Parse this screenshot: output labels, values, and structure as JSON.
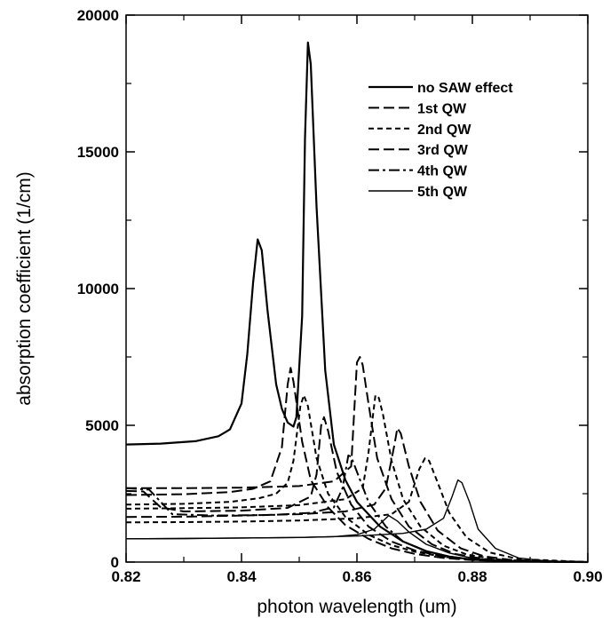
{
  "chart_data": {
    "type": "line",
    "title": "",
    "xlabel": "photon wavelength (um)",
    "ylabel": "absorption coefficient (1/cm)",
    "xlim": [
      0.82,
      0.9
    ],
    "ylim": [
      0,
      20000
    ],
    "xticks": [
      "0.82",
      "0.84",
      "0.86",
      "0.88",
      "0.90"
    ],
    "yticks": [
      "0",
      "5000",
      "10000",
      "15000",
      "20000"
    ],
    "grid": false,
    "legend_position": "top-right",
    "series": [
      {
        "name": "no SAW effect",
        "style": "solid",
        "color": "#000000",
        "points": [
          [
            0.82,
            4300
          ],
          [
            0.826,
            4330
          ],
          [
            0.832,
            4420
          ],
          [
            0.836,
            4600
          ],
          [
            0.838,
            4850
          ],
          [
            0.84,
            5800
          ],
          [
            0.841,
            7600
          ],
          [
            0.842,
            10200
          ],
          [
            0.8428,
            11800
          ],
          [
            0.8435,
            11400
          ],
          [
            0.8445,
            9200
          ],
          [
            0.846,
            6500
          ],
          [
            0.847,
            5600
          ],
          [
            0.848,
            5100
          ],
          [
            0.849,
            4950
          ],
          [
            0.8495,
            5300
          ],
          [
            0.8505,
            9000
          ],
          [
            0.851,
            15500
          ],
          [
            0.8515,
            19000
          ],
          [
            0.852,
            18200
          ],
          [
            0.853,
            13000
          ],
          [
            0.8545,
            7000
          ],
          [
            0.856,
            4300
          ],
          [
            0.858,
            3000
          ],
          [
            0.86,
            2200
          ],
          [
            0.864,
            1300
          ],
          [
            0.868,
            750
          ],
          [
            0.872,
            400
          ],
          [
            0.876,
            200
          ],
          [
            0.88,
            90
          ],
          [
            0.886,
            30
          ],
          [
            0.9,
            0
          ]
        ]
      },
      {
        "name": "1st QW",
        "style": "long-dash",
        "color": "#000000",
        "points": [
          [
            0.82,
            2450
          ],
          [
            0.83,
            2480
          ],
          [
            0.838,
            2560
          ],
          [
            0.842,
            2680
          ],
          [
            0.845,
            2950
          ],
          [
            0.847,
            4200
          ],
          [
            0.848,
            6500
          ],
          [
            0.8485,
            7100
          ],
          [
            0.849,
            6600
          ],
          [
            0.8505,
            4400
          ],
          [
            0.852,
            3000
          ],
          [
            0.855,
            2000
          ],
          [
            0.858,
            1350
          ],
          [
            0.862,
            850
          ],
          [
            0.866,
            500
          ],
          [
            0.87,
            300
          ],
          [
            0.875,
            150
          ],
          [
            0.88,
            70
          ],
          [
            0.887,
            20
          ],
          [
            0.9,
            0
          ]
        ]
      },
      {
        "name": "2nd QW",
        "style": "short-dash",
        "color": "#000000",
        "points": [
          [
            0.82,
            2100
          ],
          [
            0.83,
            2130
          ],
          [
            0.838,
            2200
          ],
          [
            0.843,
            2330
          ],
          [
            0.846,
            2500
          ],
          [
            0.848,
            2900
          ],
          [
            0.849,
            3700
          ],
          [
            0.8502,
            5700
          ],
          [
            0.8508,
            6100
          ],
          [
            0.8515,
            5700
          ],
          [
            0.853,
            3800
          ],
          [
            0.855,
            2500
          ],
          [
            0.858,
            1650
          ],
          [
            0.862,
            1000
          ],
          [
            0.866,
            620
          ],
          [
            0.87,
            380
          ],
          [
            0.875,
            190
          ],
          [
            0.88,
            80
          ],
          [
            0.887,
            25
          ],
          [
            0.9,
            0
          ]
        ]
      },
      {
        "name": "3rd QW",
        "style": "long-dash",
        "color": "#000000",
        "points": [
          [
            0.82,
            2600
          ],
          [
            0.823,
            2580
          ],
          [
            0.826,
            2000
          ],
          [
            0.83,
            1850
          ],
          [
            0.84,
            1880
          ],
          [
            0.848,
            1980
          ],
          [
            0.852,
            2400
          ],
          [
            0.853,
            3200
          ],
          [
            0.8538,
            5000
          ],
          [
            0.8543,
            5300
          ],
          [
            0.855,
            4800
          ],
          [
            0.8565,
            3300
          ],
          [
            0.859,
            2100
          ],
          [
            0.862,
            1300
          ],
          [
            0.866,
            750
          ],
          [
            0.87,
            430
          ],
          [
            0.875,
            200
          ],
          [
            0.88,
            90
          ],
          [
            0.887,
            25
          ],
          [
            0.9,
            0
          ]
        ]
      },
      {
        "name": "4th QW",
        "style": "dash-dot",
        "color": "#000000",
        "points": [
          [
            0.82,
            2700
          ],
          [
            0.824,
            2650
          ],
          [
            0.828,
            1750
          ],
          [
            0.835,
            1700
          ],
          [
            0.845,
            1720
          ],
          [
            0.852,
            1800
          ],
          [
            0.856,
            2000
          ],
          [
            0.8575,
            2700
          ],
          [
            0.8585,
            3900
          ],
          [
            0.859,
            3850
          ],
          [
            0.86,
            3300
          ],
          [
            0.862,
            2200
          ],
          [
            0.865,
            1300
          ],
          [
            0.868,
            750
          ],
          [
            0.872,
            400
          ],
          [
            0.876,
            200
          ],
          [
            0.88,
            90
          ],
          [
            0.887,
            25
          ],
          [
            0.9,
            0
          ]
        ]
      },
      {
        "name": "5th QW",
        "style": "thin-solid",
        "color": "#000000",
        "points": [
          [
            0.82,
            850
          ],
          [
            0.83,
            860
          ],
          [
            0.84,
            880
          ],
          [
            0.85,
            900
          ],
          [
            0.856,
            930
          ],
          [
            0.86,
            1000
          ],
          [
            0.863,
            1200
          ],
          [
            0.8645,
            1500
          ],
          [
            0.8655,
            1700
          ],
          [
            0.867,
            1500
          ],
          [
            0.869,
            1100
          ],
          [
            0.872,
            650
          ],
          [
            0.876,
            330
          ],
          [
            0.88,
            140
          ],
          [
            0.886,
            40
          ],
          [
            0.9,
            0
          ]
        ]
      },
      {
        "name": "",
        "style": "long-dash",
        "color": "#000000",
        "points": [
          [
            0.82,
            2700
          ],
          [
            0.83,
            2700
          ],
          [
            0.84,
            2720
          ],
          [
            0.85,
            2780
          ],
          [
            0.856,
            2950
          ],
          [
            0.859,
            3500
          ],
          [
            0.86,
            7300
          ],
          [
            0.8605,
            7500
          ],
          [
            0.861,
            7200
          ],
          [
            0.862,
            5800
          ],
          [
            0.8635,
            3800
          ],
          [
            0.866,
            2300
          ],
          [
            0.869,
            1300
          ],
          [
            0.873,
            650
          ],
          [
            0.877,
            300
          ],
          [
            0.882,
            110
          ],
          [
            0.889,
            30
          ],
          [
            0.9,
            0
          ]
        ]
      },
      {
        "name": "",
        "style": "short-dash",
        "color": "#000000",
        "points": [
          [
            0.82,
            1950
          ],
          [
            0.83,
            1970
          ],
          [
            0.84,
            2000
          ],
          [
            0.85,
            2080
          ],
          [
            0.858,
            2300
          ],
          [
            0.861,
            2700
          ],
          [
            0.862,
            4000
          ],
          [
            0.8632,
            6100
          ],
          [
            0.8638,
            6000
          ],
          [
            0.8645,
            5400
          ],
          [
            0.866,
            3700
          ],
          [
            0.868,
            2300
          ],
          [
            0.871,
            1300
          ],
          [
            0.875,
            600
          ],
          [
            0.879,
            280
          ],
          [
            0.884,
            100
          ],
          [
            0.89,
            30
          ],
          [
            0.9,
            0
          ]
        ]
      },
      {
        "name": "",
        "style": "long-dash",
        "color": "#000000",
        "points": [
          [
            0.82,
            1650
          ],
          [
            0.83,
            1660
          ],
          [
            0.84,
            1700
          ],
          [
            0.85,
            1750
          ],
          [
            0.858,
            1850
          ],
          [
            0.863,
            2100
          ],
          [
            0.865,
            2700
          ],
          [
            0.8665,
            4300
          ],
          [
            0.867,
            4900
          ],
          [
            0.8676,
            4700
          ],
          [
            0.869,
            3500
          ],
          [
            0.871,
            2200
          ],
          [
            0.874,
            1150
          ],
          [
            0.878,
            500
          ],
          [
            0.882,
            210
          ],
          [
            0.887,
            70
          ],
          [
            0.9,
            0
          ]
        ]
      },
      {
        "name": "",
        "style": "short-dash",
        "color": "#000000",
        "points": [
          [
            0.82,
            1450
          ],
          [
            0.83,
            1460
          ],
          [
            0.84,
            1480
          ],
          [
            0.85,
            1520
          ],
          [
            0.86,
            1600
          ],
          [
            0.866,
            1750
          ],
          [
            0.869,
            2200
          ],
          [
            0.8708,
            3400
          ],
          [
            0.8718,
            3800
          ],
          [
            0.8725,
            3700
          ],
          [
            0.874,
            2900
          ],
          [
            0.876,
            1800
          ],
          [
            0.879,
            900
          ],
          [
            0.883,
            350
          ],
          [
            0.888,
            110
          ],
          [
            0.9,
            0
          ]
        ]
      },
      {
        "name": "",
        "style": "thin-solid",
        "color": "#000000",
        "points": [
          [
            0.82,
            850
          ],
          [
            0.83,
            860
          ],
          [
            0.84,
            880
          ],
          [
            0.85,
            900
          ],
          [
            0.86,
            950
          ],
          [
            0.868,
            1050
          ],
          [
            0.872,
            1200
          ],
          [
            0.875,
            1600
          ],
          [
            0.8765,
            2400
          ],
          [
            0.8775,
            3000
          ],
          [
            0.8782,
            2900
          ],
          [
            0.8795,
            2200
          ],
          [
            0.881,
            1200
          ],
          [
            0.884,
            500
          ],
          [
            0.888,
            150
          ],
          [
            0.893,
            40
          ],
          [
            0.9,
            0
          ]
        ]
      }
    ]
  }
}
